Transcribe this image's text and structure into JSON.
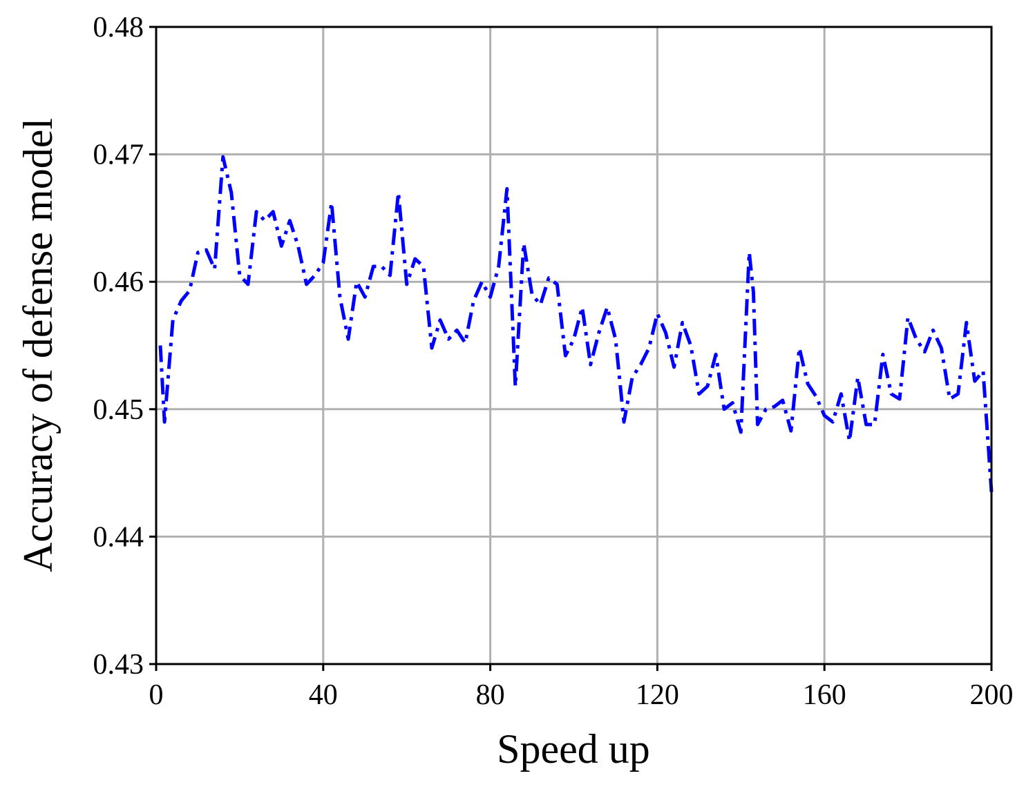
{
  "chart_data": {
    "type": "line",
    "xlabel": "Speed up",
    "ylabel": "Accuracy of defense model",
    "x": [
      1,
      2,
      4,
      6,
      8,
      10,
      12,
      14,
      16,
      18,
      20,
      22,
      24,
      26,
      28,
      30,
      32,
      34,
      36,
      38,
      40,
      42,
      44,
      46,
      48,
      50,
      52,
      54,
      56,
      58,
      60,
      62,
      64,
      66,
      68,
      70,
      72,
      74,
      76,
      78,
      80,
      82,
      84,
      86,
      88,
      90,
      92,
      94,
      96,
      98,
      100,
      102,
      104,
      106,
      108,
      110,
      112,
      114,
      116,
      118,
      120,
      122,
      124,
      126,
      128,
      130,
      132,
      134,
      136,
      138,
      140,
      142,
      143,
      144,
      146,
      148,
      150,
      152,
      154,
      156,
      158,
      160,
      162,
      164,
      166,
      168,
      170,
      172,
      174,
      176,
      178,
      180,
      182,
      184,
      186,
      188,
      190,
      192,
      194,
      196,
      198,
      200
    ],
    "series": [
      {
        "color": "#0000ff",
        "values": [
          0.455,
          0.449,
          0.457,
          0.4585,
          0.4593,
          0.4623,
          0.4625,
          0.461,
          0.4698,
          0.467,
          0.4605,
          0.4598,
          0.4655,
          0.4648,
          0.4655,
          0.4628,
          0.4648,
          0.4628,
          0.4598,
          0.4605,
          0.4615,
          0.4662,
          0.4588,
          0.4555,
          0.46,
          0.4588,
          0.4612,
          0.4612,
          0.4605,
          0.467,
          0.4598,
          0.4618,
          0.4612,
          0.4548,
          0.457,
          0.4555,
          0.4562,
          0.4552,
          0.4585,
          0.46,
          0.4588,
          0.4612,
          0.4673,
          0.4518,
          0.463,
          0.459,
          0.4582,
          0.4603,
          0.4598,
          0.4542,
          0.4555,
          0.458,
          0.4535,
          0.456,
          0.458,
          0.4555,
          0.449,
          0.4525,
          0.4535,
          0.4548,
          0.4575,
          0.456,
          0.4533,
          0.4568,
          0.455,
          0.4512,
          0.4518,
          0.4543,
          0.45,
          0.4505,
          0.4482,
          0.4623,
          0.4592,
          0.4488,
          0.45,
          0.4502,
          0.4507,
          0.4483,
          0.4548,
          0.452,
          0.451,
          0.4495,
          0.449,
          0.4512,
          0.4475,
          0.4525,
          0.4488,
          0.4488,
          0.4543,
          0.4512,
          0.4508,
          0.4572,
          0.4555,
          0.4545,
          0.4562,
          0.4548,
          0.4508,
          0.4512,
          0.4568,
          0.4522,
          0.453,
          0.4435
        ]
      }
    ],
    "xlim": [
      0,
      200
    ],
    "xticks": [
      0,
      40,
      80,
      120,
      160,
      200
    ],
    "ylim": [
      0.43,
      0.48
    ],
    "yticks": [
      0.43,
      0.44,
      0.45,
      0.46,
      0.47,
      0.48
    ],
    "grid": true
  }
}
